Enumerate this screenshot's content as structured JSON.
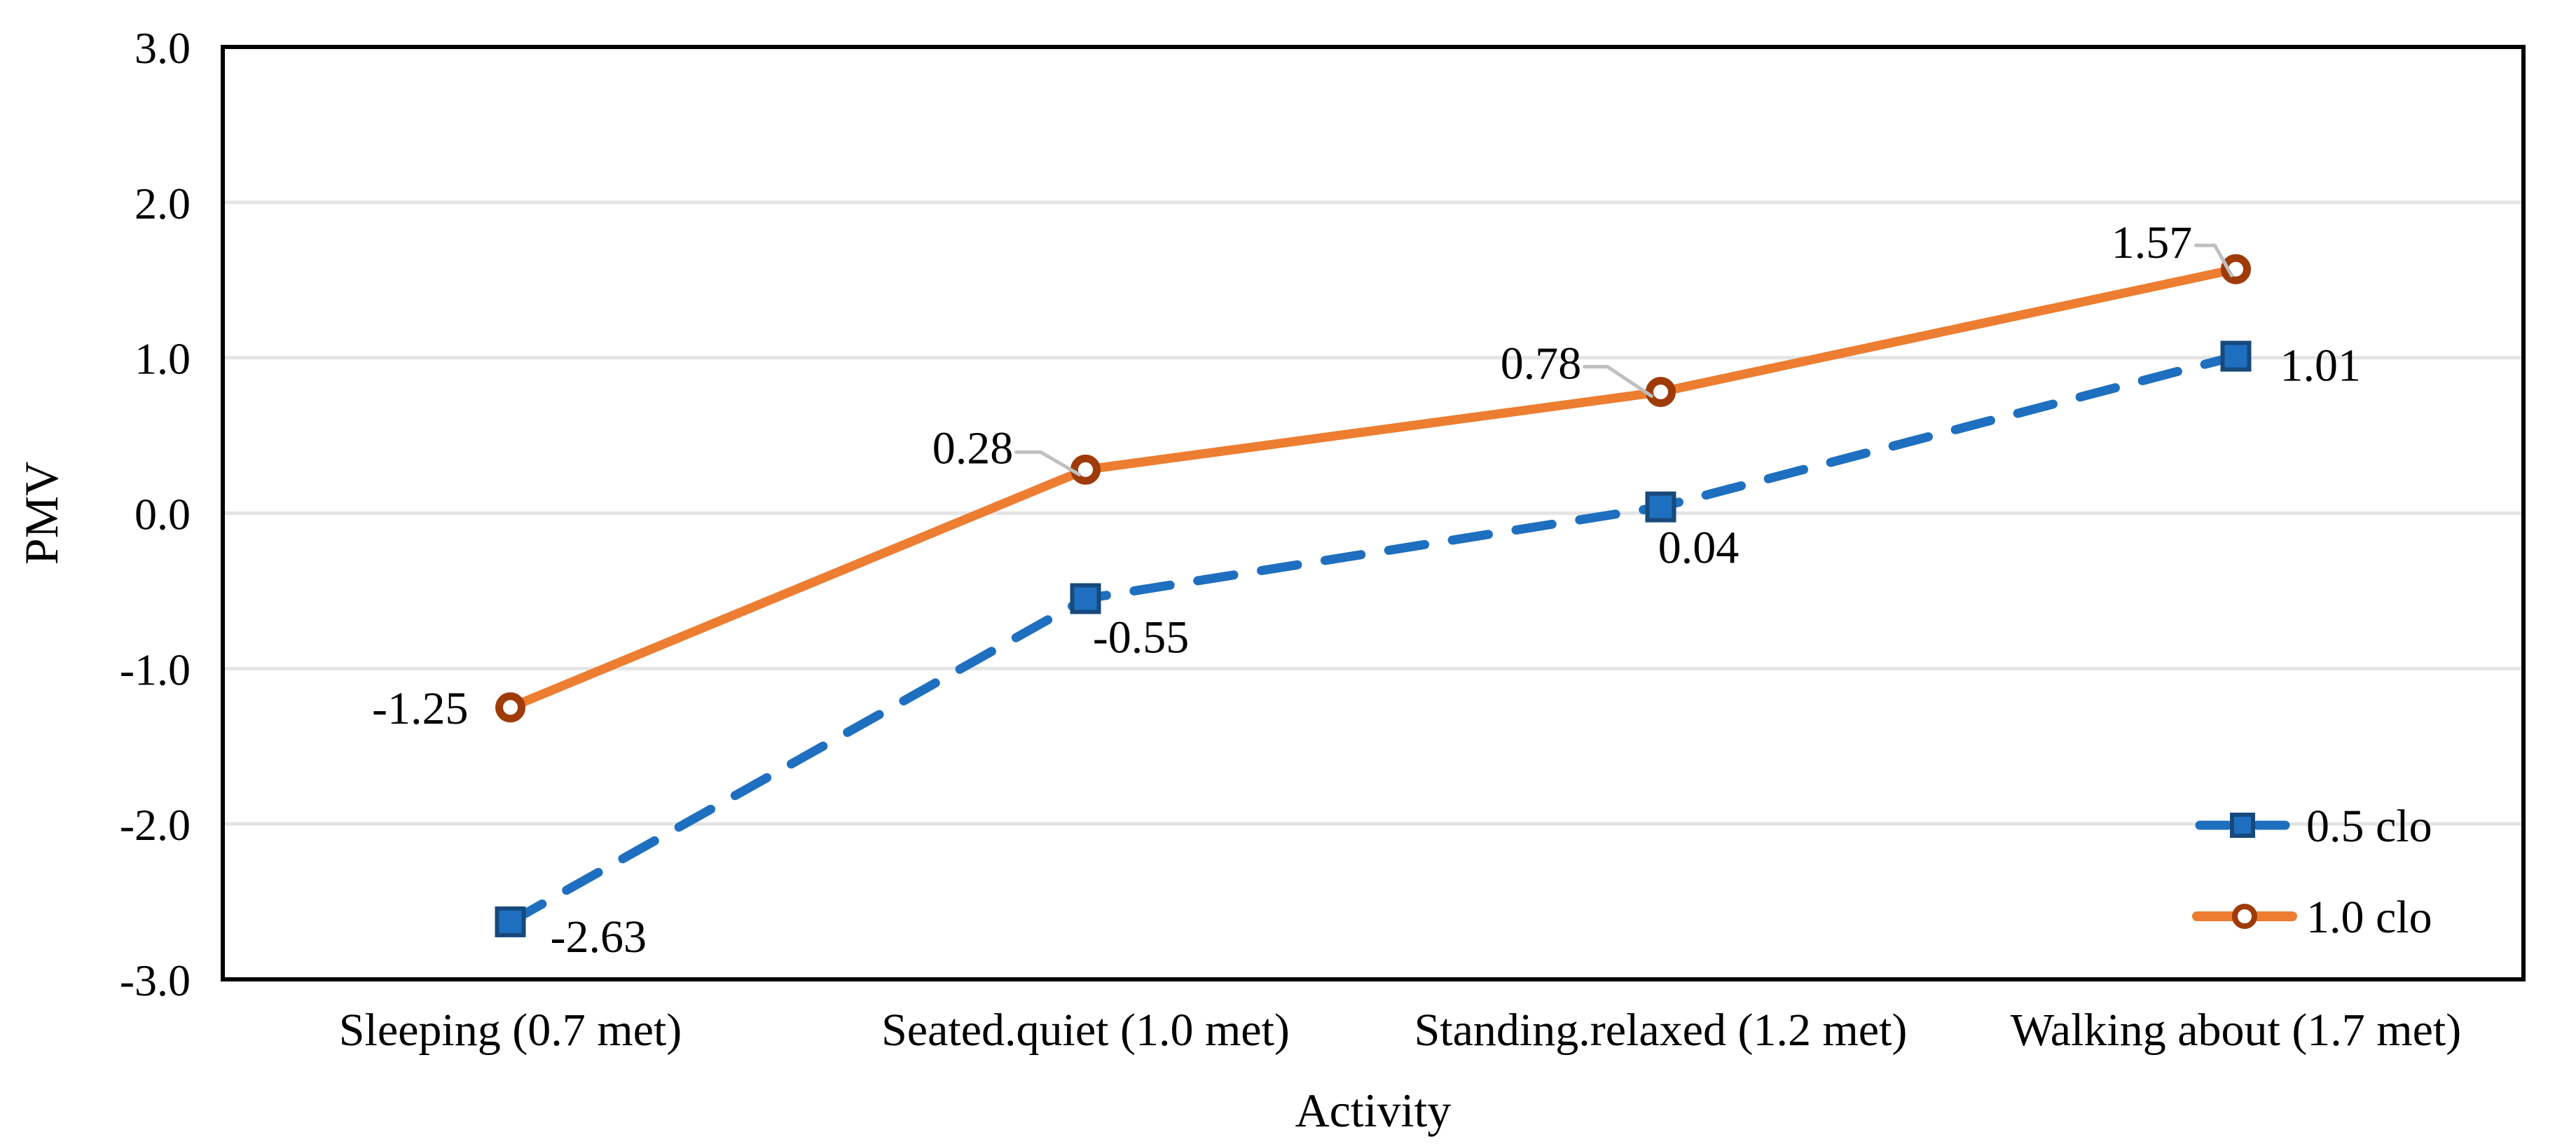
{
  "chart_data": {
    "type": "line",
    "title": "",
    "xlabel": "Activity",
    "ylabel": "PMV",
    "categories": [
      "Sleeping (0.7 met)",
      "Seated.quiet (1.0 met)",
      "Standing.relaxed (1.2 met)",
      "Walking about (1.7 met)"
    ],
    "series": [
      {
        "name": "0.5 clo",
        "values": [
          -2.63,
          -0.55,
          0.04,
          1.01
        ],
        "labels": [
          "-2.63",
          "-0.55",
          "0.04",
          "1.01"
        ],
        "color": "#1E6FBF",
        "marker_outline": "#17497C",
        "marker": "square",
        "line_style": "dashed"
      },
      {
        "name": "1.0 clo",
        "values": [
          -1.25,
          0.28,
          0.78,
          1.57
        ],
        "labels": [
          "-1.25",
          "0.28",
          "0.78",
          "1.57"
        ],
        "color": "#ED7D31",
        "marker_outline": "#9E3B09",
        "marker": "circle",
        "line_style": "solid"
      }
    ],
    "ylim": [
      -3.0,
      3.0
    ],
    "ytick_step": 1.0,
    "yticks": [
      "3.0",
      "2.0",
      "1.0",
      "0.0",
      "-1.0",
      "-2.0",
      "-3.0"
    ],
    "grid": true,
    "gridline_color": "#E4E4E4",
    "axis_color": "#000000",
    "leader_line_color": "#BFBFBF",
    "background": "#FFFFFF",
    "legend_position": "inside-bottom-right"
  }
}
